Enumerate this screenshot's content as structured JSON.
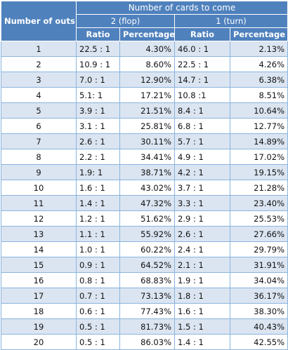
{
  "header": {
    "outs_label": "Number of outs",
    "group_label": "Number of cards to come",
    "flop_label": "2 (flop)",
    "turn_label": "1 (turn)",
    "ratio_label": "Ratio",
    "percentage_label": "Percentage"
  },
  "rows": [
    {
      "outs": "1",
      "flop_ratio": "22.5 : 1",
      "flop_pct": "4.30%",
      "turn_ratio": "46.0 : 1",
      "turn_pct": "2.13%"
    },
    {
      "outs": "2",
      "flop_ratio": "10.9 : 1",
      "flop_pct": "8.60%",
      "turn_ratio": "22.5 : 1",
      "turn_pct": "4.26%"
    },
    {
      "outs": "3",
      "flop_ratio": "7.0 : 1",
      "flop_pct": "12.90%",
      "turn_ratio": "14.7 : 1",
      "turn_pct": "6.38%"
    },
    {
      "outs": "4",
      "flop_ratio": "5.1: 1",
      "flop_pct": "17.21%",
      "turn_ratio": "10.8 :1",
      "turn_pct": "8.51%"
    },
    {
      "outs": "5",
      "flop_ratio": "3.9 : 1",
      "flop_pct": "21.51%",
      "turn_ratio": "8.4 : 1",
      "turn_pct": "10.64%"
    },
    {
      "outs": "6",
      "flop_ratio": "3.1 : 1",
      "flop_pct": "25.81%",
      "turn_ratio": "6.8 : 1",
      "turn_pct": "12.77%"
    },
    {
      "outs": "7",
      "flop_ratio": "2.6 : 1",
      "flop_pct": "30.11%",
      "turn_ratio": "5.7 : 1",
      "turn_pct": "14.89%"
    },
    {
      "outs": "8",
      "flop_ratio": "2.2 : 1",
      "flop_pct": "34.41%",
      "turn_ratio": "4.9 : 1",
      "turn_pct": "17.02%"
    },
    {
      "outs": "9",
      "flop_ratio": "1.9: 1",
      "flop_pct": "38.71%",
      "turn_ratio": "4.2 : 1",
      "turn_pct": "19.15%"
    },
    {
      "outs": "10",
      "flop_ratio": "1.6 : 1",
      "flop_pct": "43.02%",
      "turn_ratio": "3.7 : 1",
      "turn_pct": "21.28%"
    },
    {
      "outs": "11",
      "flop_ratio": "1.4 : 1",
      "flop_pct": "47.32%",
      "turn_ratio": "3.3 : 1",
      "turn_pct": "23.40%"
    },
    {
      "outs": "12",
      "flop_ratio": "1.2 : 1",
      "flop_pct": "51.62%",
      "turn_ratio": "2.9 : 1",
      "turn_pct": "25.53%"
    },
    {
      "outs": "13",
      "flop_ratio": "1.1 : 1",
      "flop_pct": "55.92%",
      "turn_ratio": "2.6 : 1",
      "turn_pct": "27.66%"
    },
    {
      "outs": "14",
      "flop_ratio": "1.0 : 1",
      "flop_pct": "60.22%",
      "turn_ratio": "2.4 : 1",
      "turn_pct": "29.79%"
    },
    {
      "outs": "15",
      "flop_ratio": "0.9 : 1",
      "flop_pct": "64.52%",
      "turn_ratio": "2.1 : 1",
      "turn_pct": "31.91%"
    },
    {
      "outs": "16",
      "flop_ratio": "0.8 : 1",
      "flop_pct": "68.83%",
      "turn_ratio": "1.9 : 1",
      "turn_pct": "34.04%"
    },
    {
      "outs": "17",
      "flop_ratio": "0.7 : 1",
      "flop_pct": "73.13%",
      "turn_ratio": "1.8 : 1",
      "turn_pct": "36.17%"
    },
    {
      "outs": "18",
      "flop_ratio": "0.6 : 1",
      "flop_pct": "77.43%",
      "turn_ratio": "1.6 : 1",
      "turn_pct": "38.30%"
    },
    {
      "outs": "19",
      "flop_ratio": "0.5 : 1",
      "flop_pct": "81.73%",
      "turn_ratio": "1.5 : 1",
      "turn_pct": "40.43%"
    },
    {
      "outs": "20",
      "flop_ratio": "0.5 : 1",
      "flop_pct": "86.03%",
      "turn_ratio": "1.4 : 1",
      "turn_pct": "42.55%"
    }
  ]
}
